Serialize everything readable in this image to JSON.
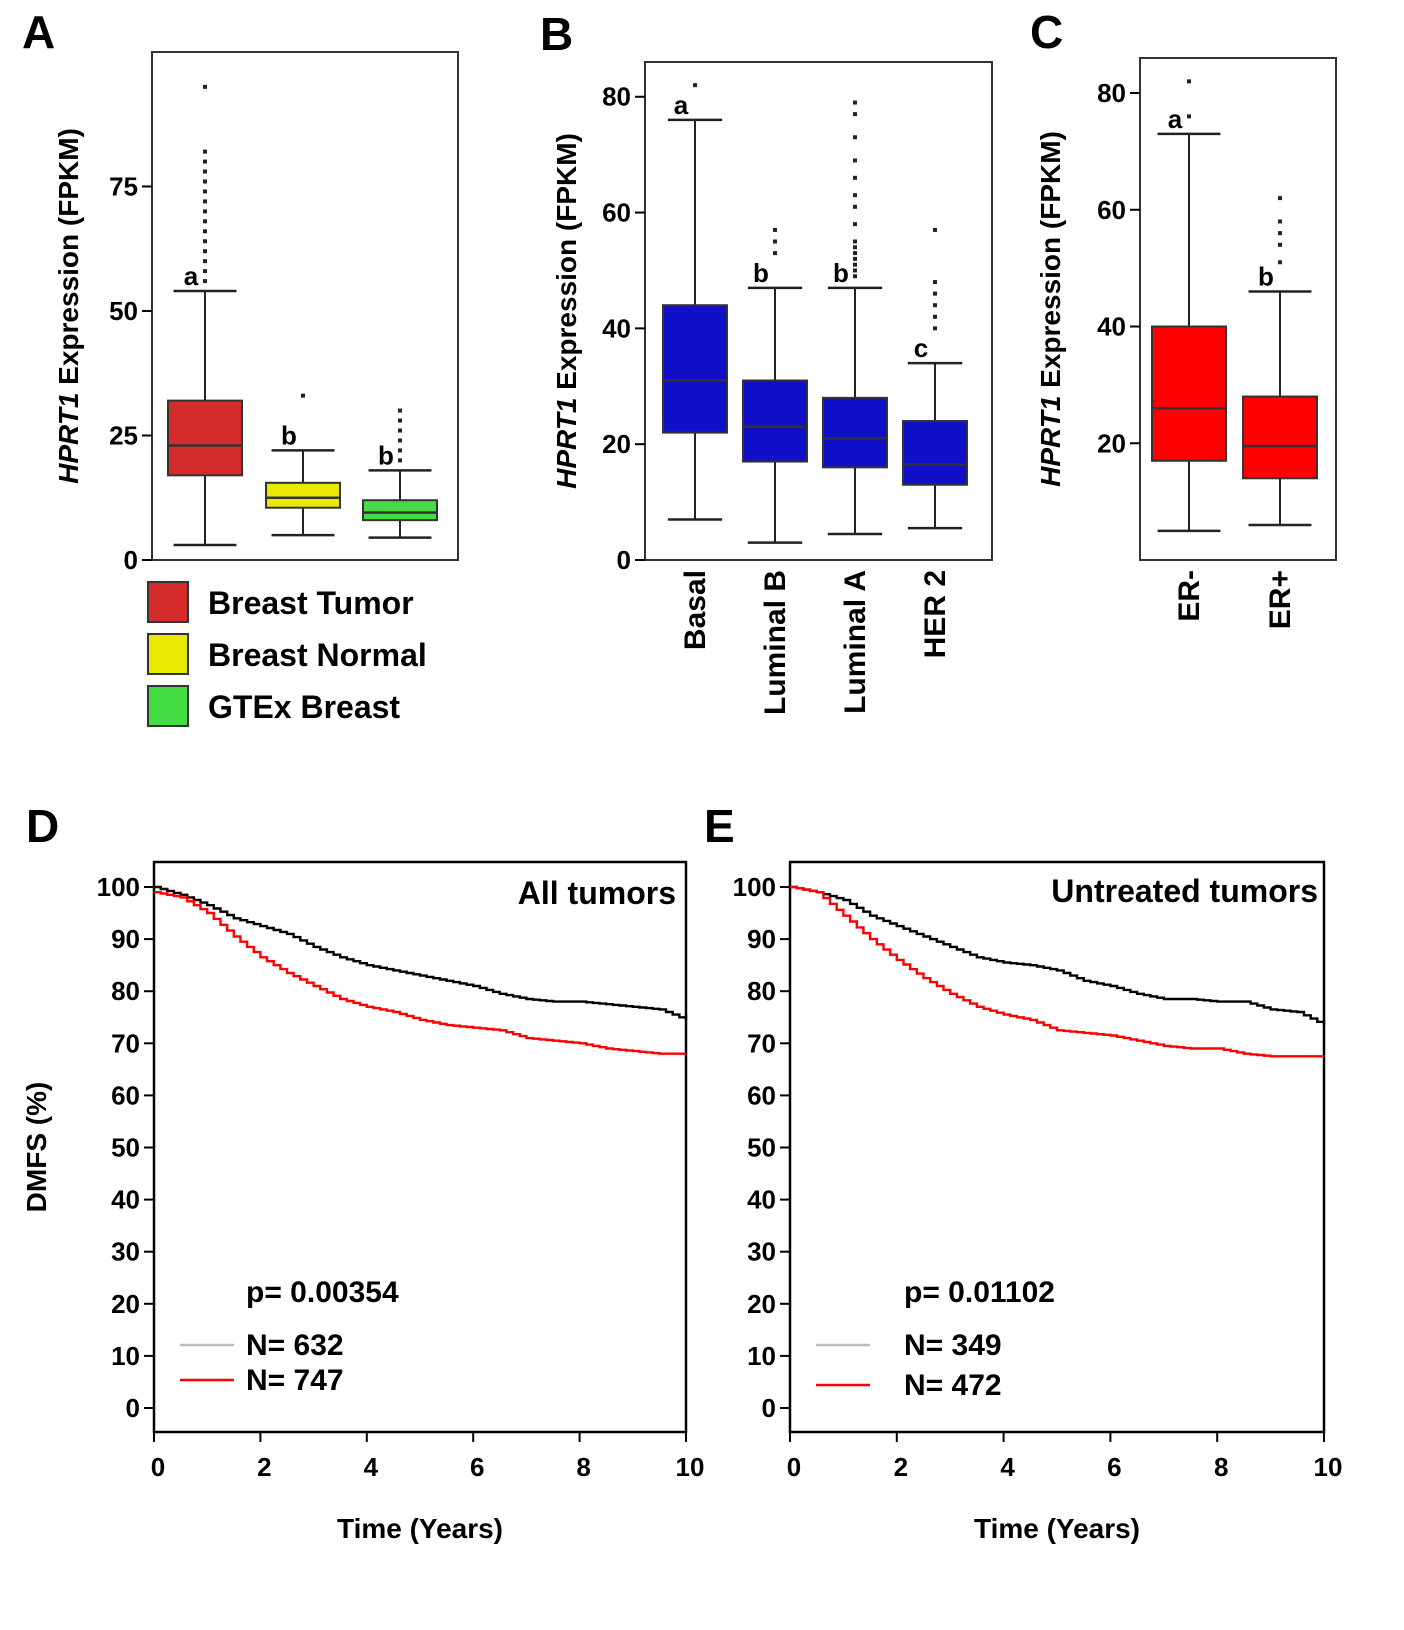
{
  "chart_data": [
    {
      "id": "A",
      "type": "box",
      "panel_label": "A",
      "ylabel_italic": "HPRT1",
      "ylabel": " Expression (FPKM)",
      "ylim": [
        0,
        102
      ],
      "yticks": [
        0,
        25,
        50,
        75
      ],
      "tick_labels": [
        "0",
        "25",
        "50",
        "75"
      ],
      "show_category_labels": false,
      "boxes": [
        {
          "category": "Breast Tumor",
          "min": 3,
          "q1": 17,
          "median": 23,
          "q3": 32,
          "max": 54,
          "letter": "a",
          "color": "#d42b2b",
          "outliers": [
            56,
            58,
            60,
            62,
            64,
            66,
            68,
            70,
            72,
            74,
            76,
            78,
            80,
            82,
            95
          ]
        },
        {
          "category": "Breast Normal",
          "min": 5,
          "q1": 10.5,
          "median": 12.5,
          "q3": 15.5,
          "max": 22,
          "letter": "b",
          "color": "#e8e800",
          "outliers": [
            33
          ]
        },
        {
          "category": "GTEx Breast",
          "min": 4.5,
          "q1": 8,
          "median": 9.5,
          "q3": 12,
          "max": 18,
          "letter": "b",
          "color": "#44dd44",
          "outliers": [
            20,
            22,
            24,
            26,
            28,
            30
          ]
        }
      ],
      "legend": [
        {
          "label": "Breast Tumor",
          "color": "#d42b2b"
        },
        {
          "label": "Breast Normal",
          "color": "#e8e800"
        },
        {
          "label": "GTEx Breast",
          "color": "#44dd44"
        }
      ]
    },
    {
      "id": "B",
      "type": "box",
      "panel_label": "B",
      "ylabel_italic": "HPRT1",
      "ylabel": " Expression (FPKM)",
      "ylim": [
        0,
        86
      ],
      "yticks": [
        0,
        20,
        40,
        60,
        80
      ],
      "tick_labels": [
        "0",
        "20",
        "40",
        "60",
        "80"
      ],
      "show_category_labels": true,
      "boxes": [
        {
          "category": "Basal",
          "min": 7,
          "q1": 22,
          "median": 31,
          "q3": 44,
          "max": 76,
          "letter": "a",
          "color": "#1010c8",
          "outliers": [
            82
          ]
        },
        {
          "category": "Luminal B",
          "min": 3,
          "q1": 17,
          "median": 23,
          "q3": 31,
          "max": 47,
          "letter": "b",
          "color": "#1010c8",
          "outliers": [
            53,
            55,
            57
          ]
        },
        {
          "category": "Luminal A",
          "min": 4.5,
          "q1": 16,
          "median": 21,
          "q3": 28,
          "max": 47,
          "letter": "b",
          "color": "#1010c8",
          "outliers": [
            49,
            50,
            51,
            52,
            53,
            54,
            55,
            58,
            61,
            63,
            66,
            69,
            73,
            77,
            79
          ]
        },
        {
          "category": "HER 2",
          "min": 5.5,
          "q1": 13,
          "median": 16.5,
          "q3": 24,
          "max": 34,
          "letter": "c",
          "color": "#1010c8",
          "outliers": [
            40,
            42,
            44,
            46,
            48,
            57
          ]
        }
      ]
    },
    {
      "id": "C",
      "type": "box",
      "panel_label": "C",
      "ylabel_italic": "HPRT1",
      "ylabel": " Expression (FPKM)",
      "ylim": [
        0,
        86
      ],
      "yticks": [
        20,
        40,
        60,
        80
      ],
      "tick_labels": [
        "20",
        "40",
        "60",
        "80"
      ],
      "show_category_labels": true,
      "boxes": [
        {
          "category": "ER-",
          "min": 5,
          "q1": 17,
          "median": 26,
          "q3": 40,
          "max": 73,
          "letter": "a",
          "color": "#ff0000",
          "outliers": [
            76,
            82
          ]
        },
        {
          "category": "ER+",
          "min": 6,
          "q1": 14,
          "median": 19.5,
          "q3": 28,
          "max": 46,
          "letter": "b",
          "color": "#ff0000",
          "outliers": [
            51,
            54,
            56,
            58,
            62
          ]
        }
      ]
    },
    {
      "id": "D",
      "type": "line",
      "panel_label": "D",
      "title": "All tumors",
      "ylabel": "DMFS (%)",
      "xlabel": "Time (Years)",
      "xlim": [
        0,
        10
      ],
      "ylim": [
        0,
        100
      ],
      "xticks": [
        0,
        2,
        4,
        6,
        8,
        10
      ],
      "x_tick_labels": [
        "0",
        "2",
        "4",
        "6",
        "8",
        "10"
      ],
      "yticks": [
        0,
        10,
        20,
        30,
        40,
        50,
        60,
        70,
        80,
        90,
        100
      ],
      "y_tick_labels": [
        "0",
        "10",
        "20",
        "30",
        "40",
        "50",
        "60",
        "70",
        "80",
        "90",
        "100"
      ],
      "p_value": "p= 0.00354",
      "series": [
        {
          "name": "N= 632",
          "color": "#000000",
          "legend_color": "#bbbbbb",
          "x": [
            0,
            0.5,
            1,
            1.5,
            2,
            2.5,
            3,
            3.5,
            4,
            4.5,
            5,
            5.5,
            6,
            6.5,
            7,
            7.5,
            8,
            8.5,
            9,
            9.5,
            10
          ],
          "y": [
            100,
            98.5,
            96.5,
            94,
            92.5,
            91,
            88.5,
            86.5,
            85,
            84,
            83,
            82,
            81,
            79.5,
            78.5,
            78,
            78,
            77.5,
            77,
            76.5,
            74.5
          ]
        },
        {
          "name": "N= 747",
          "color": "#ff0000",
          "legend_color": "#ff0000",
          "x": [
            0,
            0.5,
            1,
            1.5,
            2,
            2.5,
            3,
            3.5,
            4,
            4.5,
            5,
            5.5,
            6,
            6.5,
            7,
            7.5,
            8,
            8.5,
            9,
            9.5,
            10
          ],
          "y": [
            99,
            98,
            95,
            90.5,
            86.5,
            83.5,
            81,
            78.5,
            77,
            76,
            74.5,
            73.5,
            73,
            72.5,
            71,
            70.5,
            70,
            69,
            68.5,
            68,
            68
          ]
        }
      ]
    },
    {
      "id": "E",
      "type": "line",
      "panel_label": "E",
      "title": "Untreated tumors",
      "ylabel": "",
      "xlabel": "Time (Years)",
      "xlim": [
        0,
        10
      ],
      "ylim": [
        0,
        100
      ],
      "xticks": [
        0,
        2,
        4,
        6,
        8,
        10
      ],
      "x_tick_labels": [
        "0",
        "2",
        "4",
        "6",
        "8",
        "10"
      ],
      "yticks": [
        0,
        10,
        20,
        30,
        40,
        50,
        60,
        70,
        80,
        90,
        100
      ],
      "y_tick_labels": [
        "0",
        "10",
        "20",
        "30",
        "40",
        "50",
        "60",
        "70",
        "80",
        "90",
        "100"
      ],
      "p_value": "p= 0.01102",
      "series": [
        {
          "name": "N= 349",
          "color": "#000000",
          "legend_color": "#bbbbbb",
          "x": [
            0,
            0.5,
            1,
            1.5,
            2,
            2.5,
            3,
            3.5,
            4,
            4.5,
            5,
            5.5,
            6,
            6.5,
            7,
            7.5,
            8,
            8.5,
            9,
            9.5,
            10
          ],
          "y": [
            100,
            99,
            97.5,
            94.5,
            92.5,
            90.5,
            88.5,
            86.5,
            85.5,
            85,
            84,
            82,
            81,
            79.5,
            78.5,
            78.5,
            78,
            78,
            76.5,
            76,
            73.5
          ]
        },
        {
          "name": "N= 472",
          "color": "#ff0000",
          "legend_color": "#ff0000",
          "x": [
            0,
            0.5,
            1,
            1.5,
            2,
            2.5,
            3,
            3.5,
            4,
            4.5,
            5,
            5.5,
            6,
            6.5,
            7,
            7.5,
            8,
            8.5,
            9,
            9.5,
            10
          ],
          "y": [
            100,
            99,
            94.5,
            90,
            86,
            82.5,
            79.5,
            77,
            75.5,
            74.5,
            72.5,
            72,
            71.5,
            70.5,
            69.5,
            69,
            69,
            68,
            67.5,
            67.5,
            67.5
          ]
        }
      ]
    }
  ]
}
